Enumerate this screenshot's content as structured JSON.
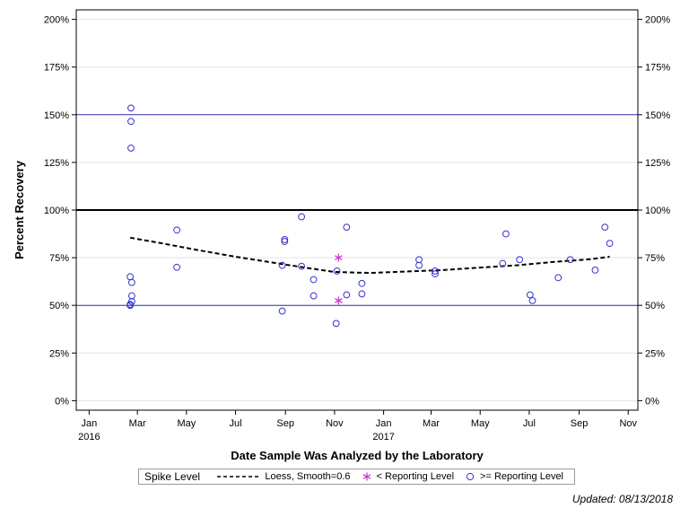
{
  "chart_data": {
    "type": "scatter",
    "xlabel": "Date Sample Was Analyzed by the Laboratory",
    "ylabel": "Percent Recovery",
    "x_ticks": [
      {
        "date": "2016-01-01",
        "label": "Jan",
        "year": "2016"
      },
      {
        "date": "2016-03-01",
        "label": "Mar",
        "year": ""
      },
      {
        "date": "2016-05-01",
        "label": "May",
        "year": ""
      },
      {
        "date": "2016-07-01",
        "label": "Jul",
        "year": ""
      },
      {
        "date": "2016-09-01",
        "label": "Sep",
        "year": ""
      },
      {
        "date": "2016-11-01",
        "label": "Nov",
        "year": ""
      },
      {
        "date": "2017-01-01",
        "label": "Jan",
        "year": "2017"
      },
      {
        "date": "2017-03-01",
        "label": "Mar",
        "year": ""
      },
      {
        "date": "2017-05-01",
        "label": "May",
        "year": ""
      },
      {
        "date": "2017-07-01",
        "label": "Jul",
        "year": ""
      },
      {
        "date": "2017-09-01",
        "label": "Sep",
        "year": ""
      },
      {
        "date": "2017-11-01",
        "label": "Nov",
        "year": ""
      }
    ],
    "xlim": [
      "2015-12-16",
      "2017-11-13"
    ],
    "ylim": [
      -5,
      205
    ],
    "y_ticks": [
      0,
      25,
      50,
      75,
      100,
      125,
      150,
      175,
      200
    ],
    "y_tick_labels": [
      "0%",
      "25%",
      "50%",
      "75%",
      "100%",
      "125%",
      "150%",
      "175%",
      "200%"
    ],
    "reference_lines": [
      {
        "y": 50,
        "color": "#3333aa",
        "style": "thin"
      },
      {
        "y": 100,
        "color": "#000000",
        "style": "thick"
      },
      {
        "y": 150,
        "color": "#3333aa",
        "style": "thin"
      }
    ],
    "grid": true,
    "legend_position": "bottom",
    "series": [
      {
        "name": ">= Reporting Level",
        "marker": "circle",
        "color": "#3333cc",
        "points": [
          {
            "x": "2016-02-22",
            "y": 153.5
          },
          {
            "x": "2016-02-22",
            "y": 146.5
          },
          {
            "x": "2016-02-22",
            "y": 132.5
          },
          {
            "x": "2016-02-21",
            "y": 65
          },
          {
            "x": "2016-02-21",
            "y": 50.5
          },
          {
            "x": "2016-02-21",
            "y": 50
          },
          {
            "x": "2016-02-23",
            "y": 62
          },
          {
            "x": "2016-02-23",
            "y": 55
          },
          {
            "x": "2016-02-23",
            "y": 52
          },
          {
            "x": "2016-04-19",
            "y": 89.5
          },
          {
            "x": "2016-04-19",
            "y": 70
          },
          {
            "x": "2016-08-28",
            "y": 71
          },
          {
            "x": "2016-08-28",
            "y": 47
          },
          {
            "x": "2016-08-31",
            "y": 84.5
          },
          {
            "x": "2016-08-31",
            "y": 83.5
          },
          {
            "x": "2016-09-21",
            "y": 96.5
          },
          {
            "x": "2016-09-21",
            "y": 70.5
          },
          {
            "x": "2016-10-06",
            "y": 63.5
          },
          {
            "x": "2016-10-06",
            "y": 55
          },
          {
            "x": "2016-11-04",
            "y": 68
          },
          {
            "x": "2016-11-03",
            "y": 40.5
          },
          {
            "x": "2016-11-16",
            "y": 91
          },
          {
            "x": "2016-11-16",
            "y": 55.5
          },
          {
            "x": "2016-12-05",
            "y": 61.5
          },
          {
            "x": "2016-12-05",
            "y": 56
          },
          {
            "x": "2017-02-14",
            "y": 74
          },
          {
            "x": "2017-02-14",
            "y": 71
          },
          {
            "x": "2017-03-06",
            "y": 68
          },
          {
            "x": "2017-03-06",
            "y": 66.5
          },
          {
            "x": "2017-06-02",
            "y": 87.5
          },
          {
            "x": "2017-05-29",
            "y": 72
          },
          {
            "x": "2017-06-19",
            "y": 74
          },
          {
            "x": "2017-07-02",
            "y": 55.5
          },
          {
            "x": "2017-07-05",
            "y": 52.5
          },
          {
            "x": "2017-08-06",
            "y": 64.5
          },
          {
            "x": "2017-08-21",
            "y": 74
          },
          {
            "x": "2017-09-21",
            "y": 68.5
          },
          {
            "x": "2017-10-03",
            "y": 91
          },
          {
            "x": "2017-10-09",
            "y": 82.5
          }
        ]
      },
      {
        "name": "< Reporting Level",
        "marker": "star",
        "color": "#cc33cc",
        "points": [
          {
            "x": "2016-11-06",
            "y": 75
          },
          {
            "x": "2016-11-06",
            "y": 52.5
          }
        ]
      },
      {
        "name": "Loess, Smooth=0.6",
        "marker": "none",
        "line": "dashed",
        "color": "#000000",
        "points": [
          {
            "x": "2016-02-21",
            "y": 85.5
          },
          {
            "x": "2016-04-01",
            "y": 82.5
          },
          {
            "x": "2016-05-15",
            "y": 79
          },
          {
            "x": "2016-07-01",
            "y": 75.5
          },
          {
            "x": "2016-08-15",
            "y": 72.5
          },
          {
            "x": "2016-09-30",
            "y": 69.5
          },
          {
            "x": "2016-11-01",
            "y": 67.5
          },
          {
            "x": "2016-12-15",
            "y": 67
          },
          {
            "x": "2017-02-01",
            "y": 67.8
          },
          {
            "x": "2017-03-15",
            "y": 68.5
          },
          {
            "x": "2017-05-01",
            "y": 69.8
          },
          {
            "x": "2017-06-15",
            "y": 71
          },
          {
            "x": "2017-08-01",
            "y": 72.8
          },
          {
            "x": "2017-09-15",
            "y": 74.2
          },
          {
            "x": "2017-10-09",
            "y": 75.5
          }
        ]
      }
    ]
  },
  "legend": {
    "title": "Spike Level",
    "items": [
      {
        "label": "Loess, Smooth=0.6",
        "kind": "dash",
        "color": "#000000"
      },
      {
        "label": "< Reporting Level",
        "kind": "star",
        "color": "#cc33cc"
      },
      {
        "label": ">= Reporting Level",
        "kind": "circle",
        "color": "#3333cc"
      }
    ]
  },
  "footer": {
    "updated": "Updated: 08/13/2018"
  }
}
